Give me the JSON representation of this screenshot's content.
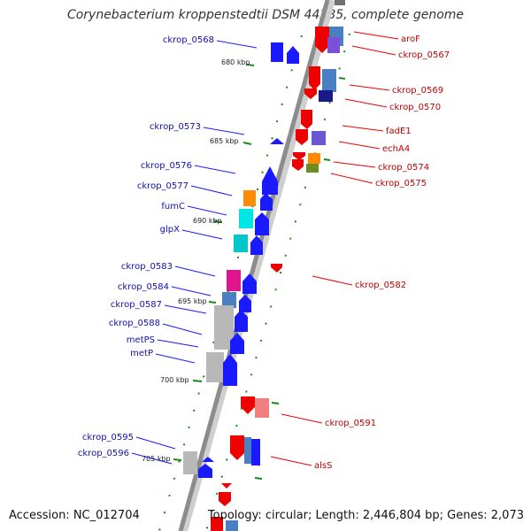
{
  "title": "Corynebacterium kroppenstedtii DSM 44385, complete genome",
  "footer": {
    "accession": "Accession: NC_012704",
    "summary": "Topology: circular; Length: 2,446,804 bp; Genes: 2,073"
  },
  "colors": {
    "backbone": "#8c8c8c",
    "forward_gene": "#1a1aff",
    "reverse_gene": "#ee0000",
    "left_label": "#1010b0",
    "right_label": "#c00000",
    "tick": "#1a8a1a"
  },
  "kbp_markers": [
    {
      "label": "680 kbp"
    },
    {
      "label": "685 kbp"
    },
    {
      "label": "690 kbp"
    },
    {
      "label": "695 kbp"
    },
    {
      "label": "700 kbp"
    },
    {
      "label": "705 kbp"
    }
  ],
  "left_labels": [
    {
      "label": "ckrop_0568"
    },
    {
      "label": "ckrop_0573"
    },
    {
      "label": "ckrop_0576"
    },
    {
      "label": "ckrop_0577"
    },
    {
      "label": "fumC"
    },
    {
      "label": "glpX"
    },
    {
      "label": "ckrop_0583"
    },
    {
      "label": "ckrop_0584"
    },
    {
      "label": "ckrop_0587"
    },
    {
      "label": "ckrop_0588"
    },
    {
      "label": "metPS"
    },
    {
      "label": "metP"
    },
    {
      "label": "ckrop_0595"
    },
    {
      "label": "ckrop_0596"
    }
  ],
  "right_labels": [
    {
      "label": "aroF"
    },
    {
      "label": "ckrop_0567"
    },
    {
      "label": "ckrop_0569"
    },
    {
      "label": "ckrop_0570"
    },
    {
      "label": "fadE1"
    },
    {
      "label": "echA4"
    },
    {
      "label": "ckrop_0574"
    },
    {
      "label": "ckrop_0575"
    },
    {
      "label": "ckrop_0582"
    },
    {
      "label": "ckrop_0591"
    },
    {
      "label": "alsS"
    }
  ]
}
